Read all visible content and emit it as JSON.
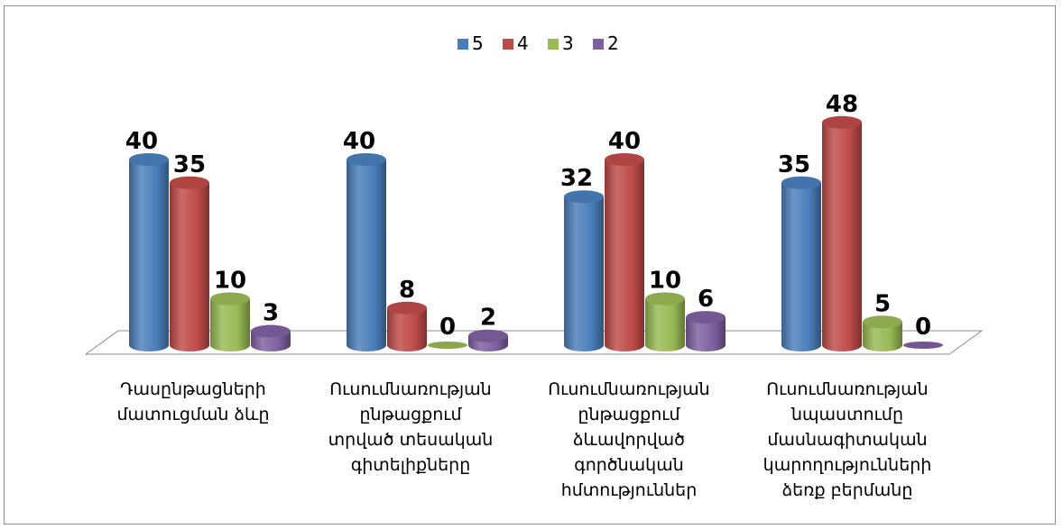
{
  "chart_data": {
    "type": "bar",
    "categories": [
      [
        "Դասընթացների",
        "մատուցման ձևը"
      ],
      [
        "Ուսումնառության",
        "ընթացքում",
        "տրված  տեսական",
        "գիտելիքները"
      ],
      [
        "Ուսումնառության",
        "ընթացքում",
        "ձևավորված",
        "գործնական",
        "հմտություններ"
      ],
      [
        "Ուսումնառության",
        "նպաստումը",
        "մասնագիտական",
        "կարողությունների",
        "ձեռք բերմանը"
      ]
    ],
    "series": [
      {
        "name": "5",
        "color": "#4a7ebb",
        "values": [
          40,
          40,
          32,
          35
        ]
      },
      {
        "name": "4",
        "color": "#be4b48",
        "values": [
          35,
          8,
          40,
          48
        ]
      },
      {
        "name": "3",
        "color": "#98b954",
        "values": [
          10,
          0,
          10,
          5
        ]
      },
      {
        "name": "2",
        "color": "#7d60a0",
        "values": [
          3,
          2,
          6,
          0
        ]
      }
    ],
    "ylim": [
      0,
      50
    ],
    "legend": "top",
    "grid": false,
    "style": "3d-cylinder"
  }
}
